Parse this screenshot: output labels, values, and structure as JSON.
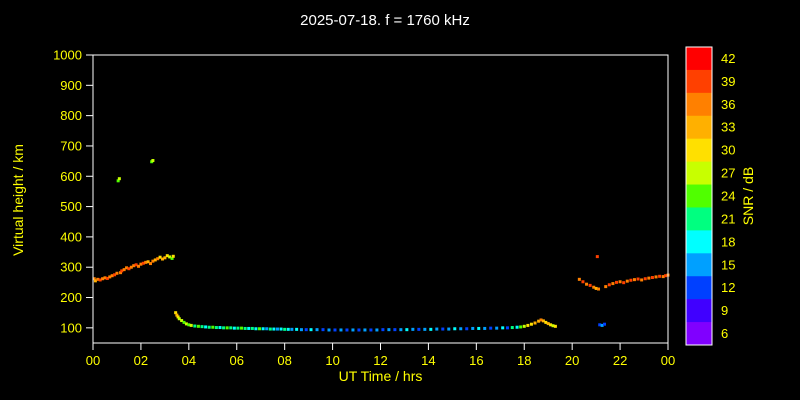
{
  "chart_data": {
    "type": "scatter",
    "title": "2025-07-18. f = 1760 kHz",
    "xlabel": "UT Time / hrs",
    "ylabel": "Virtual height / km",
    "colorbar_label": "SNR / dB",
    "xlim": [
      0,
      24
    ],
    "ylim": [
      50,
      1000
    ],
    "grid": false,
    "background": "#000000",
    "frame_color": "#ffffff",
    "tick_label_color": "#ffff00",
    "x_ticks": [
      {
        "v": 0,
        "label": "00"
      },
      {
        "v": 2,
        "label": "02"
      },
      {
        "v": 4,
        "label": "04"
      },
      {
        "v": 6,
        "label": "06"
      },
      {
        "v": 8,
        "label": "08"
      },
      {
        "v": 10,
        "label": "10"
      },
      {
        "v": 12,
        "label": "12"
      },
      {
        "v": 14,
        "label": "14"
      },
      {
        "v": 16,
        "label": "16"
      },
      {
        "v": 18,
        "label": "18"
      },
      {
        "v": 20,
        "label": "20"
      },
      {
        "v": 22,
        "label": "22"
      },
      {
        "v": 24,
        "label": "00"
      }
    ],
    "y_tick_values": [
      100,
      200,
      300,
      400,
      500,
      600,
      700,
      800,
      900,
      1000
    ],
    "colorbar": {
      "min": 6,
      "max": 42,
      "stops": [
        {
          "v": 42,
          "color": "#ff0000"
        },
        {
          "v": 39,
          "color": "#ff4000"
        },
        {
          "v": 36,
          "color": "#ff8000"
        },
        {
          "v": 33,
          "color": "#ffb000"
        },
        {
          "v": 30,
          "color": "#ffe000"
        },
        {
          "v": 27,
          "color": "#c8ff00"
        },
        {
          "v": 24,
          "color": "#50ff00"
        },
        {
          "v": 21,
          "color": "#00ff80"
        },
        {
          "v": 18,
          "color": "#00ffff"
        },
        {
          "v": 15,
          "color": "#00a0ff"
        },
        {
          "v": 12,
          "color": "#0040ff"
        },
        {
          "v": 9,
          "color": "#4000ff"
        },
        {
          "v": 6,
          "color": "#8000ff"
        }
      ]
    },
    "points": [
      [
        0.05,
        262,
        36
      ],
      [
        0.1,
        255,
        33
      ],
      [
        0.2,
        260,
        36
      ],
      [
        0.3,
        258,
        39
      ],
      [
        0.4,
        262,
        36
      ],
      [
        0.5,
        265,
        36
      ],
      [
        0.6,
        263,
        39
      ],
      [
        0.7,
        268,
        36
      ],
      [
        0.8,
        272,
        36
      ],
      [
        0.9,
        275,
        39
      ],
      [
        1.0,
        280,
        36
      ],
      [
        1.05,
        585,
        24
      ],
      [
        1.1,
        592,
        27
      ],
      [
        1.15,
        282,
        36
      ],
      [
        1.2,
        288,
        39
      ],
      [
        1.3,
        292,
        36
      ],
      [
        1.4,
        298,
        36
      ],
      [
        1.5,
        295,
        39
      ],
      [
        1.6,
        300,
        36
      ],
      [
        1.7,
        305,
        36
      ],
      [
        1.8,
        308,
        39
      ],
      [
        1.9,
        303,
        36
      ],
      [
        2.0,
        310,
        36
      ],
      [
        2.1,
        313,
        39
      ],
      [
        2.2,
        316,
        36
      ],
      [
        2.3,
        318,
        33
      ],
      [
        2.4,
        312,
        36
      ],
      [
        2.45,
        648,
        24
      ],
      [
        2.5,
        652,
        27
      ],
      [
        2.5,
        320,
        36
      ],
      [
        2.6,
        324,
        33
      ],
      [
        2.7,
        328,
        36
      ],
      [
        2.8,
        333,
        30
      ],
      [
        2.9,
        327,
        33
      ],
      [
        3.0,
        331,
        33
      ],
      [
        3.1,
        338,
        30
      ],
      [
        3.2,
        334,
        27
      ],
      [
        3.3,
        329,
        24
      ],
      [
        3.35,
        336,
        30
      ],
      [
        3.45,
        150,
        30
      ],
      [
        3.5,
        142,
        33
      ],
      [
        3.55,
        136,
        30
      ],
      [
        3.6,
        130,
        27
      ],
      [
        3.7,
        124,
        27
      ],
      [
        3.8,
        118,
        24
      ],
      [
        3.9,
        113,
        27
      ],
      [
        4.0,
        110,
        24
      ],
      [
        4.1,
        108,
        27
      ],
      [
        4.25,
        106,
        21
      ],
      [
        4.4,
        105,
        24
      ],
      [
        4.55,
        104,
        21
      ],
      [
        4.7,
        103,
        18
      ],
      [
        4.85,
        102,
        21
      ],
      [
        5.0,
        102,
        24
      ],
      [
        5.15,
        101,
        21
      ],
      [
        5.3,
        101,
        18
      ],
      [
        5.45,
        100,
        21
      ],
      [
        5.6,
        100,
        24
      ],
      [
        5.75,
        100,
        21
      ],
      [
        5.9,
        99,
        18
      ],
      [
        6.05,
        99,
        21
      ],
      [
        6.2,
        99,
        24
      ],
      [
        6.35,
        98,
        21
      ],
      [
        6.5,
        98,
        18
      ],
      [
        6.65,
        98,
        21
      ],
      [
        6.8,
        97,
        18
      ],
      [
        6.95,
        97,
        24
      ],
      [
        7.1,
        97,
        18
      ],
      [
        7.25,
        97,
        15
      ],
      [
        7.4,
        96,
        21
      ],
      [
        7.55,
        96,
        18
      ],
      [
        7.7,
        96,
        15
      ],
      [
        7.85,
        96,
        18
      ],
      [
        8.0,
        95,
        21
      ],
      [
        8.15,
        95,
        18
      ],
      [
        8.3,
        95,
        15
      ],
      [
        8.5,
        95,
        18
      ],
      [
        8.7,
        94,
        15
      ],
      [
        8.9,
        94,
        12
      ],
      [
        9.1,
        94,
        18
      ],
      [
        9.35,
        94,
        15
      ],
      [
        9.6,
        94,
        12
      ],
      [
        9.85,
        93,
        15
      ],
      [
        10.1,
        93,
        12
      ],
      [
        10.35,
        93,
        15
      ],
      [
        10.6,
        93,
        12
      ],
      [
        10.85,
        93,
        15
      ],
      [
        11.1,
        93,
        12
      ],
      [
        11.35,
        93,
        15
      ],
      [
        11.6,
        93,
        12
      ],
      [
        11.85,
        93,
        15
      ],
      [
        12.1,
        94,
        12
      ],
      [
        12.35,
        94,
        15
      ],
      [
        12.6,
        94,
        12
      ],
      [
        12.85,
        94,
        15
      ],
      [
        13.1,
        94,
        18
      ],
      [
        13.35,
        95,
        15
      ],
      [
        13.6,
        95,
        12
      ],
      [
        13.85,
        95,
        15
      ],
      [
        14.1,
        95,
        18
      ],
      [
        14.35,
        96,
        15
      ],
      [
        14.6,
        96,
        12
      ],
      [
        14.85,
        96,
        15
      ],
      [
        15.1,
        97,
        18
      ],
      [
        15.35,
        97,
        15
      ],
      [
        15.6,
        97,
        12
      ],
      [
        15.85,
        98,
        15
      ],
      [
        16.1,
        98,
        18
      ],
      [
        16.35,
        98,
        15
      ],
      [
        16.6,
        99,
        12
      ],
      [
        16.85,
        99,
        15
      ],
      [
        17.1,
        100,
        18
      ],
      [
        17.3,
        100,
        12
      ],
      [
        17.5,
        101,
        21
      ],
      [
        17.7,
        102,
        18
      ],
      [
        17.85,
        103,
        24
      ],
      [
        18.0,
        105,
        27
      ],
      [
        18.15,
        108,
        30
      ],
      [
        18.3,
        112,
        30
      ],
      [
        18.45,
        116,
        33
      ],
      [
        18.6,
        122,
        33
      ],
      [
        18.7,
        126,
        36
      ],
      [
        18.8,
        123,
        33
      ],
      [
        18.9,
        118,
        30
      ],
      [
        19.0,
        114,
        33
      ],
      [
        19.1,
        110,
        30
      ],
      [
        19.2,
        107,
        27
      ],
      [
        19.3,
        105,
        30
      ],
      [
        20.3,
        260,
        36
      ],
      [
        20.45,
        252,
        39
      ],
      [
        20.6,
        244,
        36
      ],
      [
        20.75,
        240,
        39
      ],
      [
        20.9,
        234,
        36
      ],
      [
        21.0,
        230,
        33
      ],
      [
        21.05,
        335,
        39
      ],
      [
        21.1,
        228,
        36
      ],
      [
        21.15,
        110,
        12
      ],
      [
        21.25,
        108,
        15
      ],
      [
        21.35,
        112,
        12
      ],
      [
        21.4,
        236,
        36
      ],
      [
        21.55,
        242,
        39
      ],
      [
        21.7,
        246,
        36
      ],
      [
        21.85,
        250,
        39
      ],
      [
        22.0,
        252,
        36
      ],
      [
        22.15,
        249,
        39
      ],
      [
        22.3,
        254,
        36
      ],
      [
        22.45,
        257,
        39
      ],
      [
        22.6,
        259,
        36
      ],
      [
        22.75,
        261,
        39
      ],
      [
        22.9,
        258,
        36
      ],
      [
        23.05,
        262,
        39
      ],
      [
        23.2,
        264,
        36
      ],
      [
        23.35,
        266,
        39
      ],
      [
        23.5,
        268,
        36
      ],
      [
        23.65,
        270,
        39
      ],
      [
        23.8,
        269,
        36
      ],
      [
        23.9,
        272,
        39
      ],
      [
        24.0,
        274,
        36
      ]
    ]
  }
}
